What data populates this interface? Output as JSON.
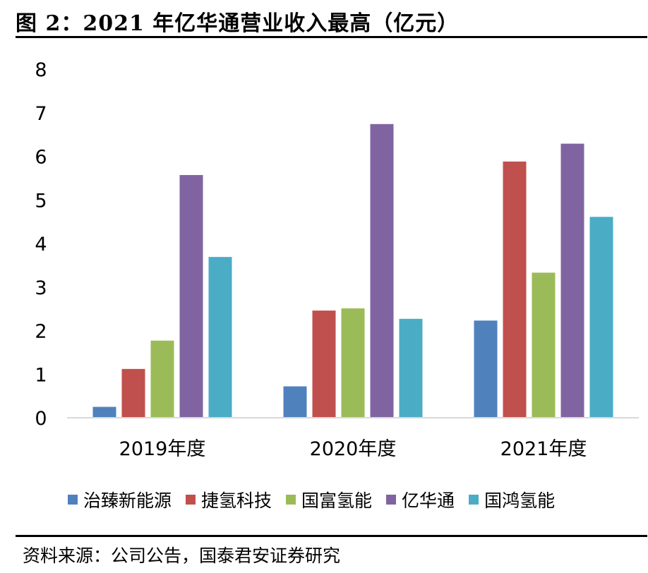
{
  "title": "图 2：2021 年亿华通营业收入最高（亿元）",
  "source": "资料来源：公司公告，国泰君安证券研究",
  "chart_data": {
    "type": "bar",
    "title": "2021 年亿华通营业收入最高（亿元）",
    "categories": [
      "2019年度",
      "2020年度",
      "2021年度"
    ],
    "ylim": [
      0,
      8
    ],
    "yticks": [
      0,
      1,
      2,
      3,
      4,
      5,
      6,
      7,
      8
    ],
    "grid": false,
    "legend": "bottom",
    "series": [
      {
        "name": "治臻新能源",
        "color": "#4f81bd",
        "values": [
          0.25,
          0.72,
          2.23
        ]
      },
      {
        "name": "捷氢科技",
        "color": "#c0504d",
        "values": [
          1.12,
          2.46,
          5.88
        ]
      },
      {
        "name": "国富氢能",
        "color": "#9bbb59",
        "values": [
          1.77,
          2.51,
          3.33
        ]
      },
      {
        "name": "亿华通",
        "color": "#8064a2",
        "values": [
          5.57,
          6.74,
          6.29
        ]
      },
      {
        "name": "国鸿氢能",
        "color": "#4bacc6",
        "values": [
          3.69,
          2.27,
          4.61
        ]
      }
    ]
  }
}
